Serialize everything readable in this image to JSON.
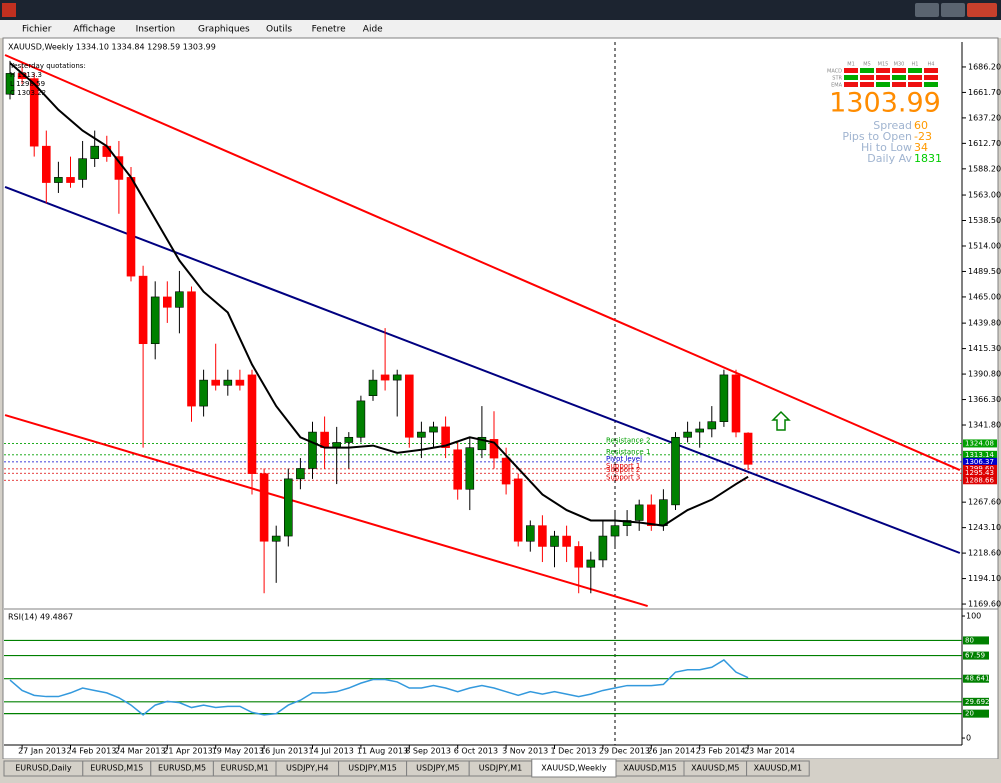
{
  "window": {
    "menu": [
      "Fichier",
      "Affichage",
      "Insertion",
      "Graphiques",
      "Outils",
      "Fenetre",
      "Aide"
    ]
  },
  "chart_data": {
    "type": "candlestick",
    "header": "XAUUSD,Weekly 1334.10 1334.84 1298.59 1303.99",
    "quotations": [
      "Yesterday quotations:",
      "H 1313.3",
      "L 1298.59",
      "C 1303.22"
    ],
    "categories": [
      null,
      "27 Jan 2013",
      null,
      null,
      null,
      "24 Feb 2013",
      null,
      null,
      null,
      "24 Mar 2013",
      null,
      null,
      null,
      "21 Apr 2013",
      null,
      null,
      null,
      "19 May 2013",
      null,
      null,
      null,
      "16 Jun 2013",
      null,
      null,
      null,
      "14 Jul 2013",
      null,
      null,
      null,
      "11 Aug 2013",
      null,
      null,
      null,
      "8 Sep 2013",
      null,
      null,
      null,
      "6 Oct 2013",
      null,
      null,
      null,
      "3 Nov 2013",
      null,
      null,
      null,
      "1 Dec 2013",
      null,
      null,
      null,
      "29 Dec 2013",
      null,
      null,
      null,
      "26 Jan 2014",
      null,
      null,
      null,
      "23 Feb 2014",
      null,
      null,
      null,
      "23 Mar 2014"
    ],
    "open": [
      1660,
      1680,
      1675,
      1610,
      1575,
      1580,
      1578,
      1598,
      1610,
      1600,
      1580,
      1485,
      1420,
      1465,
      1455,
      1470,
      1360,
      1385,
      1380,
      1385,
      1390,
      1295,
      1230,
      1235,
      1290,
      1300,
      1335,
      1320,
      1325,
      1330,
      1370,
      1390,
      1385,
      1390,
      1330,
      1335,
      1340,
      1318,
      1280,
      1318,
      1328,
      1310,
      1290,
      1230,
      1245,
      1225,
      1235,
      1225,
      1205,
      1212,
      1235,
      1245,
      1250,
      1265,
      1245,
      1265,
      1330,
      1335,
      1338,
      1345,
      1390,
      1334.1
    ],
    "high": [
      1692,
      1690,
      1680,
      1625,
      1595,
      1600,
      1615,
      1625,
      1620,
      1615,
      1590,
      1495,
      1480,
      1480,
      1490,
      1475,
      1395,
      1420,
      1395,
      1395,
      1395,
      1300,
      1245,
      1300,
      1310,
      1345,
      1350,
      1340,
      1335,
      1370,
      1395,
      1435,
      1395,
      1390,
      1345,
      1345,
      1350,
      1325,
      1330,
      1360,
      1355,
      1320,
      1295,
      1250,
      1255,
      1240,
      1245,
      1230,
      1220,
      1250,
      1260,
      1260,
      1270,
      1275,
      1280,
      1335,
      1345,
      1345,
      1360,
      1395,
      1395,
      1334.84
    ],
    "low": [
      1655,
      1670,
      1600,
      1555,
      1565,
      1570,
      1570,
      1590,
      1595,
      1545,
      1480,
      1320,
      1405,
      1440,
      1430,
      1345,
      1350,
      1375,
      1370,
      1375,
      1275,
      1180,
      1190,
      1225,
      1280,
      1290,
      1300,
      1285,
      1300,
      1325,
      1365,
      1375,
      1350,
      1320,
      1310,
      1320,
      1310,
      1270,
      1260,
      1310,
      1300,
      1275,
      1225,
      1220,
      1210,
      1205,
      1210,
      1180,
      1180,
      1205,
      1225,
      1235,
      1240,
      1240,
      1240,
      1260,
      1325,
      1320,
      1330,
      1340,
      1330,
      1298.59
    ],
    "close": [
      1680,
      1675,
      1610,
      1575,
      1580,
      1575,
      1598,
      1610,
      1600,
      1578,
      1485,
      1420,
      1465,
      1455,
      1470,
      1360,
      1385,
      1380,
      1385,
      1380,
      1295,
      1230,
      1235,
      1290,
      1300,
      1335,
      1320,
      1325,
      1330,
      1365,
      1385,
      1385,
      1390,
      1330,
      1335,
      1340,
      1320,
      1280,
      1320,
      1330,
      1310,
      1285,
      1230,
      1245,
      1225,
      1235,
      1225,
      1205,
      1212,
      1235,
      1245,
      1250,
      1265,
      1245,
      1270,
      1330,
      1335,
      1338,
      1345,
      1390,
      1335,
      1303.99
    ],
    "up_color": "#008000",
    "down_color": "#ff0000",
    "ylim": [
      1165.8,
      1710.2
    ],
    "yticks": [
      {
        "value": 1686.2,
        "label": "1686.20"
      },
      {
        "value": 1661.7,
        "label": "1661.70"
      },
      {
        "value": 1637.2,
        "label": "1637.20"
      },
      {
        "value": 1612.7,
        "label": "1612.70"
      },
      {
        "value": 1588.2,
        "label": "1588.20"
      },
      {
        "value": 1563,
        "label": "1563.00"
      },
      {
        "value": 1538.5,
        "label": "1538.50"
      },
      {
        "value": 1514,
        "label": "1514.00"
      },
      {
        "value": 1489.5,
        "label": "1489.50"
      },
      {
        "value": 1465,
        "label": "1465.00"
      },
      {
        "value": 1439.8,
        "label": "1439.80"
      },
      {
        "value": 1415.3,
        "label": "1415.30"
      },
      {
        "value": 1390.8,
        "label": "1390.80"
      },
      {
        "value": 1366.3,
        "label": "1366.30"
      },
      {
        "value": 1341.8,
        "label": "1341.80"
      },
      {
        "value": 1267.6,
        "label": "1267.60"
      },
      {
        "value": 1243.1,
        "label": "1243.10"
      },
      {
        "value": 1218.6,
        "label": "1218.60"
      },
      {
        "value": 1194.1,
        "label": "1194.10"
      },
      {
        "value": 1169.6,
        "label": "1169.60"
      }
    ],
    "ma": {
      "color": "#000000",
      "x": [
        0,
        2,
        4,
        6,
        8,
        10,
        12,
        14,
        16,
        18,
        20,
        22,
        24,
        26,
        28,
        30,
        32,
        34,
        36,
        38,
        40,
        42,
        44,
        46,
        48,
        50,
        52,
        54,
        56,
        58,
        60,
        61
      ],
      "values": [
        1690,
        1670,
        1645,
        1625,
        1610,
        1580,
        1540,
        1500,
        1470,
        1450,
        1400,
        1360,
        1330,
        1320,
        1320,
        1322,
        1315,
        1318,
        1322,
        1330,
        1325,
        1300,
        1275,
        1260,
        1250,
        1250,
        1248,
        1245,
        1260,
        1270,
        1285,
        1292
      ]
    },
    "trendlines": [
      {
        "color": "#ff0000",
        "x": [
          -0.41,
          78.5
        ],
        "values": [
          1697.7,
          1298.5
        ]
      },
      {
        "color": "#000080",
        "x": [
          -0.41,
          78.5
        ],
        "values": [
          1570.8,
          1218.7
        ]
      },
      {
        "color": "#ff0000",
        "x": [
          -0.41,
          52.7
        ],
        "values": [
          1351.4,
          1167.7
        ]
      }
    ],
    "levels": [
      {
        "name": "Resistance 2",
        "value": 1324.08,
        "color": "#00a000"
      },
      {
        "name": "Resistance 1",
        "value": 1313.14,
        "color": "#00a000"
      },
      {
        "name": "Pivot level",
        "value": 1306.37,
        "color": "#0000cc"
      },
      {
        "name": "Support 1",
        "value": 1299.6,
        "label": "1299.60",
        "color": "#dd0000"
      },
      {
        "name": "Support 2",
        "value": 1295.43,
        "color": "#dd0000"
      },
      {
        "name": "Support 3",
        "value": 1288.66,
        "color": "#dd0000"
      }
    ],
    "info": {
      "timeframes": [
        "M1",
        "M5",
        "M15",
        "M30",
        "H1",
        "H4"
      ],
      "indicators": [
        "MACD",
        "STR",
        "EMA"
      ],
      "price": 1303.99,
      "rows": [
        {
          "name": "Spread",
          "value": 60,
          "color": "#ff9900"
        },
        {
          "name": "Pips to Open",
          "value": -23,
          "color": "#ff9900"
        },
        {
          "name": "Hi to Low",
          "value": 34,
          "color": "#ff9900"
        },
        {
          "name": "Daily Av",
          "value": 1831,
          "color": "#00cc00"
        }
      ]
    }
  },
  "rsi": {
    "title": "RSI(14) 49.4867",
    "color": "#3399dd",
    "values": [
      47.5,
      39,
      35,
      34,
      34,
      37,
      41,
      39,
      37,
      33,
      27,
      19,
      27,
      30,
      29,
      25,
      27,
      25,
      26,
      26,
      21,
      19,
      20,
      27,
      31,
      37,
      37,
      38,
      41,
      45,
      48,
      48,
      46,
      41,
      41,
      43,
      41,
      38,
      41,
      43,
      41,
      38,
      35,
      38,
      36,
      38,
      36,
      34,
      36,
      39,
      41,
      43,
      43,
      43,
      44,
      54,
      56,
      56,
      58,
      64,
      54,
      49.4867
    ],
    "ylim": [
      -5.7,
      103.3
    ],
    "yticks": [
      100,
      0
    ],
    "levels": [
      80,
      67.59,
      48.641,
      29.692,
      20
    ]
  },
  "tabs": [
    "EURUSD,Daily",
    "EURUSD,M15",
    "EURUSD,M5",
    "EURUSD,M1",
    "USDJPY,H4",
    "USDJPY,M15",
    "USDJPY,M5",
    "USDJPY,M1",
    "XAUUSD,Weekly",
    "XAUUSD,M15",
    "XAUUSD,M5",
    "XAUUSD,M1"
  ],
  "active_tab": 8
}
